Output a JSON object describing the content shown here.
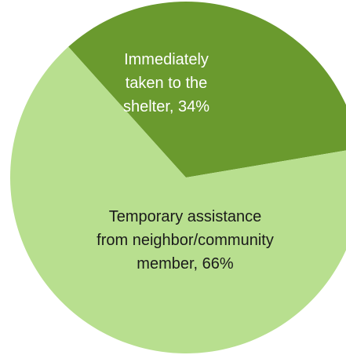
{
  "chart_data": {
    "type": "pie",
    "title": "",
    "slices": [
      {
        "label": "Immediately taken to the shelter",
        "value": 34,
        "value_label": "34%",
        "color": "#6a9a2e",
        "text_color": "#ffffff",
        "label_lines": [
          "Immediately",
          "taken to the",
          "shelter, 34%"
        ]
      },
      {
        "label": "Temporary assistance from neighbor/community member",
        "value": 66,
        "value_label": "66%",
        "color": "#b8df8f",
        "text_color": "#1a1a1a",
        "label_lines": [
          "Temporary assistance",
          "from neighbor/community",
          "member, 66%"
        ]
      }
    ],
    "start_angle_deg": 42,
    "direction": "clockwise",
    "legend": "none"
  }
}
